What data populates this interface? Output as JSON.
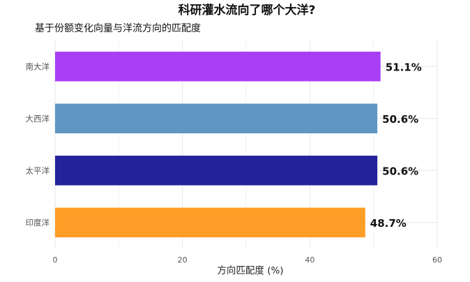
{
  "chart_data": {
    "type": "bar",
    "orientation": "horizontal",
    "title": "科研灌水流向了哪个大洋?",
    "subtitle": "基于份额变化向量与洋流方向的匹配度",
    "xlabel": "方向匹配度 (%)",
    "ylabel": "",
    "xlim": [
      0,
      60
    ],
    "x_ticks": [
      0,
      20,
      40,
      60
    ],
    "grid": true,
    "legend": "none",
    "categories": [
      "南大洋",
      "大西洋",
      "太平洋",
      "印度洋"
    ],
    "values": [
      51.1,
      50.6,
      50.6,
      48.7
    ],
    "data_labels": [
      "51.1%",
      "50.6%",
      "50.6%",
      "48.7%"
    ],
    "colors": [
      "#a93ff5",
      "#6096c2",
      "#24239b",
      "#ff9d26"
    ]
  }
}
